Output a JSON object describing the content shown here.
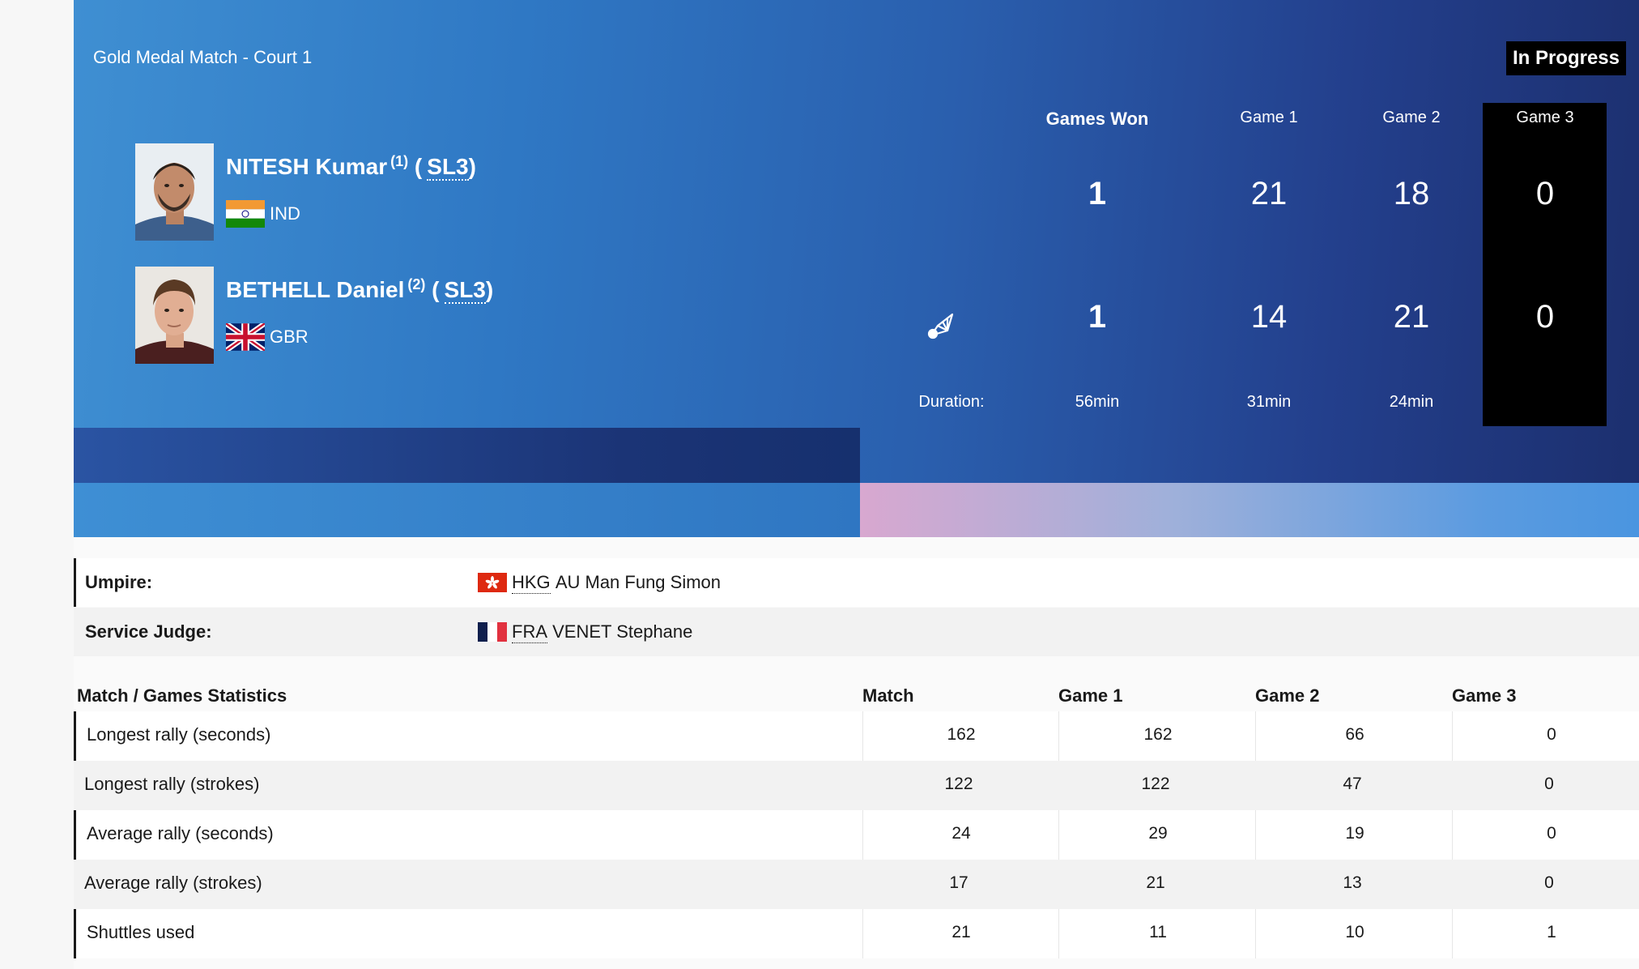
{
  "match": {
    "title": "Gold Medal Match - Court 1",
    "status": "In Progress"
  },
  "players": [
    {
      "name": "NITESH Kumar",
      "seed": "(1)",
      "class": "SL3",
      "country": "IND"
    },
    {
      "name": "BETHELL Daniel",
      "seed": "(2)",
      "class": "SL3",
      "country": "GBR"
    }
  ],
  "score_table": {
    "headers": [
      "Games Won",
      "Game 1",
      "Game 2",
      "Game 3"
    ],
    "rows": [
      [
        "1",
        "21",
        "18",
        "0"
      ],
      [
        "1",
        "14",
        "21",
        "0"
      ]
    ],
    "duration_label": "Duration:",
    "durations": [
      "56min",
      "31min",
      "24min"
    ],
    "serving_icon": "shuttlecock-icon"
  },
  "officials": [
    {
      "label": "Umpire:",
      "country": "HKG",
      "name": "AU Man Fung Simon"
    },
    {
      "label": "Service Judge:",
      "country": "FRA",
      "name": "VENET Stephane"
    }
  ],
  "stats": {
    "headers": [
      "Match / Games Statistics",
      "Match",
      "Game 1",
      "Game 2",
      "Game 3"
    ],
    "rows": [
      {
        "name": "Longest rally (seconds)",
        "values": [
          "162",
          "162",
          "66",
          "0"
        ]
      },
      {
        "name": "Longest rally (strokes)",
        "values": [
          "122",
          "122",
          "47",
          "0"
        ]
      },
      {
        "name": "Average rally (seconds)",
        "values": [
          "24",
          "29",
          "19",
          "0"
        ]
      },
      {
        "name": "Average rally (strokes)",
        "values": [
          "17",
          "21",
          "13",
          "0"
        ]
      },
      {
        "name": "Shuttles used",
        "values": [
          "21",
          "11",
          "10",
          "1"
        ]
      }
    ]
  },
  "colors": {
    "accent": "#2f78c4",
    "dark": "#1c2f6e",
    "game3_bg": "#000000"
  }
}
